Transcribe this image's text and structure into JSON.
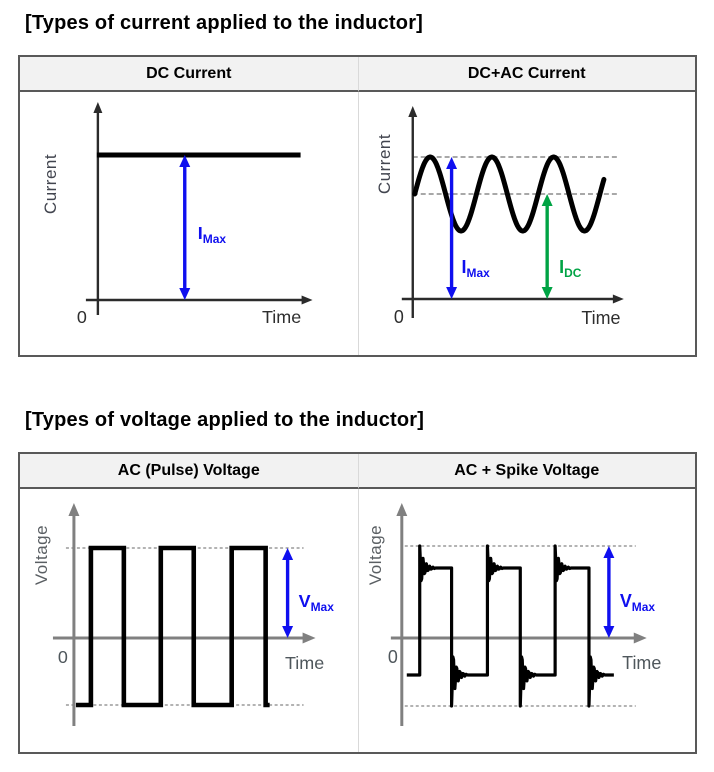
{
  "styles": {
    "header_bg": "#f2f2f2",
    "panel_border": "#595959",
    "column_divider": "#d9d9d9",
    "blue": "#0f0fef",
    "green": "#00a344"
  },
  "sections": [
    {
      "title": "[Types of current applied to the inductor]",
      "columns": [
        {
          "header": "DC Current",
          "chart": {
            "kind": "dc",
            "y_axis_label": "Current",
            "x_axis_label": "Time",
            "origin_label": "0",
            "axis_color": "#2b2b2b",
            "text_color": "#2e2e2e",
            "y_label_color": "#42454f",
            "wave_color": "#000000",
            "dashed_color": "#8c8c8c",
            "annotations": [
              {
                "text_main": "I",
                "text_sub": "Max",
                "color": "#0f0fef"
              }
            ]
          }
        },
        {
          "header": "DC+AC Current",
          "chart": {
            "kind": "dc_ac",
            "y_axis_label": "Current",
            "x_axis_label": "Time",
            "origin_label": "0",
            "axis_color": "#2b2b2b",
            "text_color": "#2e2e2e",
            "y_label_color": "#42454f",
            "wave_color": "#000000",
            "dashed_color": "#8c8c8c",
            "annotations": [
              {
                "text_main": "I",
                "text_sub": "Max",
                "color": "#0f0fef"
              },
              {
                "text_main": "I",
                "text_sub": "DC",
                "color": "#00a344"
              }
            ]
          }
        }
      ]
    },
    {
      "title": "[Types of voltage applied to the inductor]",
      "columns": [
        {
          "header": "AC (Pulse) Voltage",
          "chart": {
            "kind": "pulse",
            "y_axis_label": "Voltage",
            "x_axis_label": "Time",
            "origin_label": "0",
            "axis_color": "#808080",
            "text_color": "#4f575c",
            "y_label_color": "#5a5f63",
            "wave_color": "#000000",
            "dashed_color": "#9a9a9a",
            "annotations": [
              {
                "text_main": "V",
                "text_sub": "Max",
                "color": "#0f0fef"
              }
            ]
          }
        },
        {
          "header": "AC + Spike Voltage",
          "chart": {
            "kind": "pulse_spike",
            "y_axis_label": "Voltage",
            "x_axis_label": "Time",
            "origin_label": "0",
            "axis_color": "#808080",
            "text_color": "#4f575c",
            "y_label_color": "#5a5f63",
            "wave_color": "#000000",
            "dashed_color": "#9a9a9a",
            "annotations": [
              {
                "text_main": "V",
                "text_sub": "Max",
                "color": "#0f0fef"
              }
            ]
          }
        }
      ]
    }
  ]
}
